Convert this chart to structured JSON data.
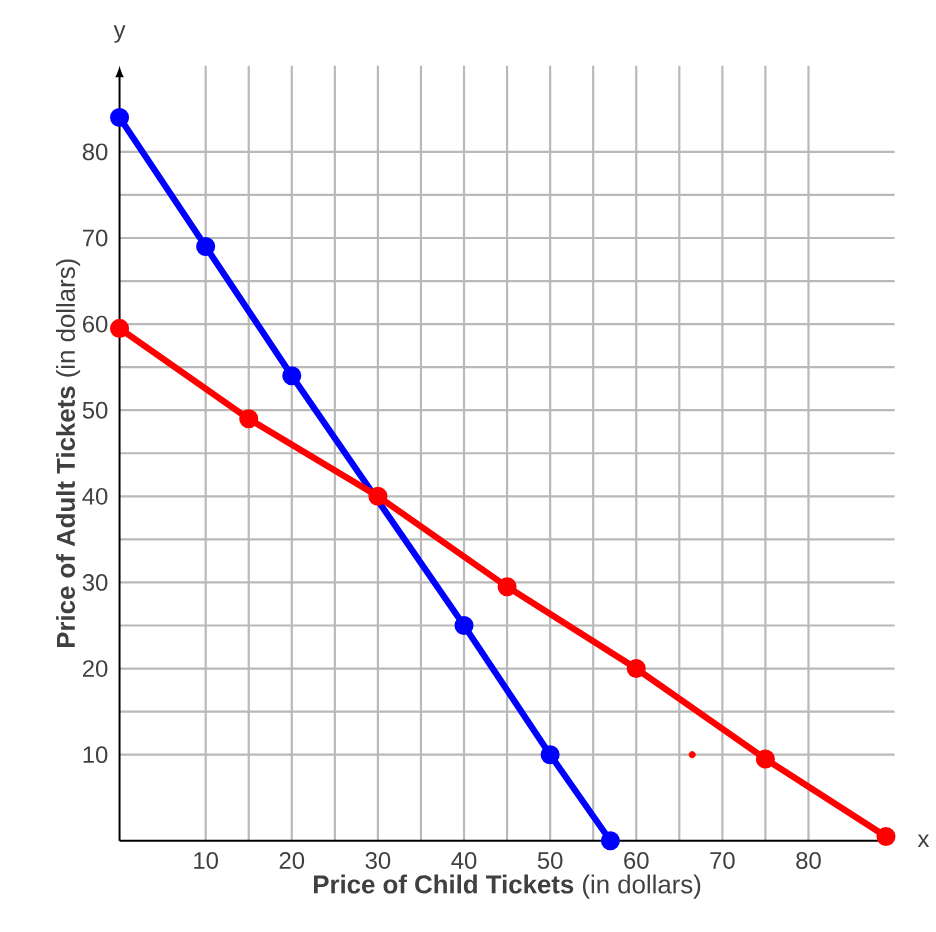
{
  "chart_data": {
    "type": "line",
    "xlabel": "**Price of Child Tickets** (in dollars)",
    "ylabel": "**Price of Adult Tickets** (in dollars)",
    "annotations": [
      "y",
      "x"
    ],
    "xlim": [
      0,
      90
    ],
    "ylim": [
      0,
      90
    ],
    "xticks": [
      10,
      20,
      30,
      40,
      50,
      60,
      70,
      80
    ],
    "yticks": [
      10,
      20,
      30,
      40,
      50,
      60,
      70,
      80
    ],
    "grid": true,
    "marker": "circle",
    "line_style": "solid",
    "series": [
      {
        "color": "#0000ff",
        "x": [
          0,
          10,
          20,
          30,
          40,
          50,
          57
        ],
        "values": [
          84,
          69,
          54,
          null,
          25,
          10,
          0
        ]
      },
      {
        "color": "#ff0000",
        "x": [
          0,
          15,
          30,
          45,
          60,
          75,
          89
        ],
        "values": [
          59.5,
          49,
          40,
          29.5,
          20,
          9.5,
          0.5
        ]
      },
      {
        "type": "scatter",
        "color": "#ff0000",
        "x": [
          66.5
        ],
        "values": [
          10
        ]
      }
    ]
  }
}
